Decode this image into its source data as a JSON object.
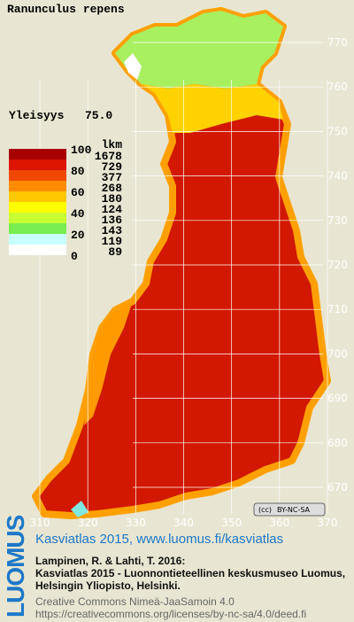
{
  "title": "Ranunculus repens",
  "frequency": {
    "label": "Yleisyys",
    "value": "75.0"
  },
  "legend": {
    "scale_labels": [
      "100",
      "80",
      "60",
      "40",
      "20",
      "0"
    ],
    "count_header": "lkm",
    "colors": [
      "#a80000",
      "#dc1400",
      "#f04800",
      "#ff8c00",
      "#ffc800",
      "#ffff00",
      "#c8ff32",
      "#78ee50",
      "#c8ffff",
      "#ffffff"
    ],
    "counts": [
      1678,
      729,
      377,
      268,
      180,
      124,
      136,
      143,
      119,
      89
    ]
  },
  "map": {
    "yticks": [
      770,
      760,
      750,
      740,
      730,
      720,
      710,
      700,
      690,
      680,
      670
    ],
    "xticks": [
      310,
      320,
      330,
      340,
      350,
      360,
      370
    ]
  },
  "license_badge": "BY-NC-SA",
  "footer": {
    "logo": "LUOMUS",
    "link": "Kasviatlas 2015, www.luomus.fi/kasviatlas",
    "citation": [
      "Lampinen, R. & Lahti, T. 2016:",
      "Kasviatlas 2015 - Luonnontieteellinen keskusmuseo Luomus,",
      "Helsingin Yliopisto, Helsinki."
    ],
    "license": [
      "Creative Commons Nimeä-JaaSamoin 4.0",
      "https://creativecommons.org/licenses/by-nc-sa/4.0/deed.fi"
    ]
  }
}
